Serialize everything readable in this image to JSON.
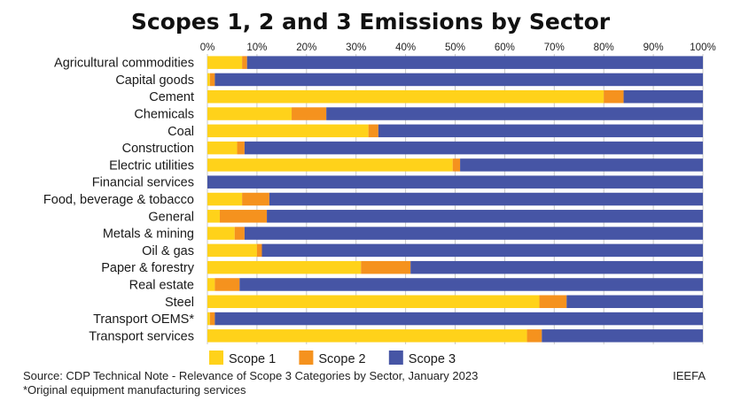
{
  "chart_data": {
    "type": "bar",
    "orientation": "horizontal",
    "stacked": true,
    "title": "Scopes 1, 2 and 3 Emissions by Sector",
    "xlabel": "",
    "ylabel": "",
    "xlim": [
      0,
      100
    ],
    "x_ticks": [
      "0%",
      "10%",
      "20%",
      "30%",
      "40%",
      "50%",
      "60%",
      "70%",
      "80%",
      "90%",
      "100%"
    ],
    "grid": true,
    "legend_position": "bottom-left",
    "categories": [
      "Agricultural commodities",
      "Capital goods",
      "Cement",
      "Chemicals",
      "Coal",
      "Construction",
      "Electric utilities",
      "Financial services",
      "Food, beverage & tobacco",
      "General",
      "Metals & mining",
      "Oil & gas",
      "Paper & forestry",
      "Real estate",
      "Steel",
      "Transport OEMS*",
      "Transport services"
    ],
    "series": [
      {
        "name": "Scope 1",
        "color": "#FFD21A",
        "values": [
          7,
          0.5,
          80,
          17,
          32.5,
          6,
          49.5,
          0,
          7,
          2.5,
          5.5,
          10,
          31,
          1.5,
          67,
          0.5,
          64.5
        ]
      },
      {
        "name": "Scope 2",
        "color": "#F5921E",
        "values": [
          1,
          1,
          4,
          7,
          2,
          1.5,
          1.5,
          0,
          5.5,
          9.5,
          2,
          1,
          10,
          5,
          5.5,
          1,
          3
        ]
      },
      {
        "name": "Scope 3",
        "color": "#4655A5",
        "values": [
          92,
          98.5,
          16,
          76,
          65.5,
          92.5,
          49,
          100,
          87.5,
          88,
          92.5,
          89,
          59,
          93.5,
          27.5,
          98.5,
          32.5
        ]
      }
    ]
  },
  "footer": {
    "source": "Source: CDP Technical Note - Relevance of Scope 3 Categories by Sector, January 2023",
    "footnote": "*Original equipment manufacturing services",
    "brand": "IEEFA"
  }
}
